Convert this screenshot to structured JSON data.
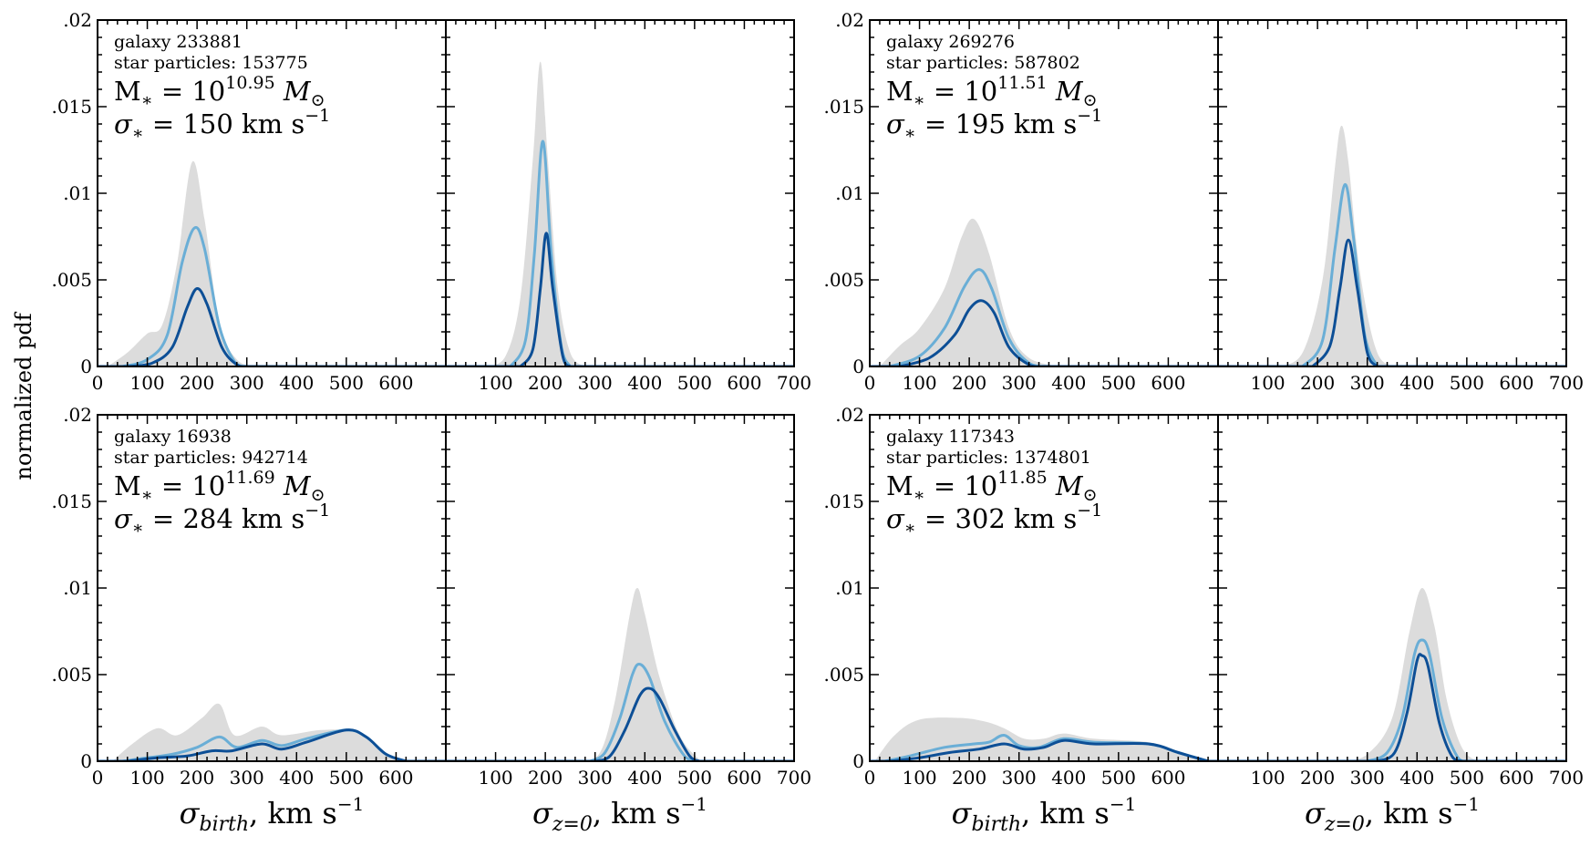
{
  "figure": {
    "ylabel": "normalized pdf",
    "xlabel_birth": {
      "sym": "σ",
      "sub": "birth",
      "unit": ", km s",
      "sup": "−1"
    },
    "xlabel_z0": {
      "sym": "σ",
      "sub": "z=0",
      "unit": ", km s",
      "sup": "−1"
    }
  },
  "colors": {
    "gray_fill": "#dcdcdc",
    "light_line": "#6aaed6",
    "dark_line": "#0d4f96"
  },
  "chart_data": [
    {
      "type": "area",
      "id": "galaxy-233881",
      "annotation": {
        "galaxy": "galaxy 233881",
        "particles": "star particles: 153775",
        "mass_exp": "10.95",
        "sigma": "150"
      },
      "birth": {
        "xlim": [
          0,
          700
        ],
        "ylim": [
          0,
          0.02
        ],
        "x_ticks": [
          "0",
          "100",
          "200",
          "300",
          "400",
          "500",
          "600"
        ],
        "y_ticks": [
          "0",
          ".005",
          ".01",
          ".015",
          ".02"
        ],
        "gray": [
          [
            20,
            0
          ],
          [
            60,
            0.0008
          ],
          [
            100,
            0.0019
          ],
          [
            130,
            0.0024
          ],
          [
            160,
            0.006
          ],
          [
            190,
            0.0118
          ],
          [
            215,
            0.0085
          ],
          [
            245,
            0.0025
          ],
          [
            280,
            0.0004
          ],
          [
            320,
            0
          ]
        ],
        "light": [
          [
            50,
            0
          ],
          [
            100,
            0.0004
          ],
          [
            140,
            0.0018
          ],
          [
            170,
            0.006
          ],
          [
            195,
            0.008
          ],
          [
            215,
            0.0068
          ],
          [
            245,
            0.0023
          ],
          [
            275,
            0.0003
          ],
          [
            300,
            0
          ]
        ],
        "dark": [
          [
            60,
            0
          ],
          [
            110,
            0.0002
          ],
          [
            150,
            0.0011
          ],
          [
            180,
            0.0034
          ],
          [
            200,
            0.0045
          ],
          [
            220,
            0.0036
          ],
          [
            250,
            0.0011
          ],
          [
            280,
            0.0001
          ],
          [
            300,
            0
          ]
        ]
      },
      "z0": {
        "xlim": [
          0,
          700
        ],
        "ylim": [
          0,
          0.02
        ],
        "x_ticks": [
          "100",
          "200",
          "300",
          "400",
          "500",
          "600",
          "700"
        ],
        "gray": [
          [
            80,
            0
          ],
          [
            120,
            0.0006
          ],
          [
            150,
            0.004
          ],
          [
            175,
            0.012
          ],
          [
            190,
            0.0176
          ],
          [
            205,
            0.012
          ],
          [
            225,
            0.0045
          ],
          [
            250,
            0.0008
          ],
          [
            280,
            0
          ]
        ],
        "light": [
          [
            130,
            0
          ],
          [
            160,
            0.0015
          ],
          [
            178,
            0.0065
          ],
          [
            195,
            0.013
          ],
          [
            212,
            0.0065
          ],
          [
            232,
            0.0012
          ],
          [
            250,
            0
          ]
        ],
        "dark": [
          [
            150,
            0
          ],
          [
            175,
            0.001
          ],
          [
            190,
            0.0045
          ],
          [
            202,
            0.0077
          ],
          [
            215,
            0.0045
          ],
          [
            235,
            0.0006
          ],
          [
            250,
            0
          ]
        ]
      }
    },
    {
      "type": "area",
      "id": "galaxy-269276",
      "annotation": {
        "galaxy": "galaxy 269276",
        "particles": "star particles: 587802",
        "mass_exp": "11.51",
        "sigma": "195"
      },
      "birth": {
        "xlim": [
          0,
          700
        ],
        "ylim": [
          0,
          0.02
        ],
        "x_ticks": [
          "0",
          "100",
          "200",
          "300",
          "400",
          "500",
          "600"
        ],
        "y_ticks": [
          "0",
          ".005",
          ".01",
          ".015",
          ".02"
        ],
        "gray": [
          [
            20,
            0
          ],
          [
            60,
            0.0012
          ],
          [
            100,
            0.0022
          ],
          [
            150,
            0.0045
          ],
          [
            185,
            0.0075
          ],
          [
            210,
            0.0085
          ],
          [
            240,
            0.0065
          ],
          [
            280,
            0.0022
          ],
          [
            320,
            0.0005
          ],
          [
            380,
            0
          ]
        ],
        "light": [
          [
            40,
            0
          ],
          [
            100,
            0.0006
          ],
          [
            150,
            0.0022
          ],
          [
            190,
            0.0046
          ],
          [
            220,
            0.0056
          ],
          [
            245,
            0.0045
          ],
          [
            280,
            0.0016
          ],
          [
            320,
            0.0002
          ],
          [
            360,
            0
          ]
        ],
        "dark": [
          [
            60,
            0
          ],
          [
            120,
            0.0005
          ],
          [
            170,
            0.0018
          ],
          [
            200,
            0.0033
          ],
          [
            225,
            0.0038
          ],
          [
            250,
            0.0031
          ],
          [
            280,
            0.0011
          ],
          [
            320,
            0.0001
          ],
          [
            350,
            0
          ]
        ]
      },
      "z0": {
        "xlim": [
          0,
          700
        ],
        "ylim": [
          0,
          0.02
        ],
        "x_ticks": [
          "100",
          "200",
          "300",
          "400",
          "500",
          "600",
          "700"
        ],
        "gray": [
          [
            120,
            0
          ],
          [
            170,
            0.0008
          ],
          [
            210,
            0.005
          ],
          [
            235,
            0.0115
          ],
          [
            248,
            0.0139
          ],
          [
            262,
            0.0118
          ],
          [
            285,
            0.0055
          ],
          [
            320,
            0.0008
          ],
          [
            360,
            0
          ]
        ],
        "light": [
          [
            170,
            0
          ],
          [
            210,
            0.0015
          ],
          [
            235,
            0.0068
          ],
          [
            255,
            0.0105
          ],
          [
            272,
            0.0075
          ],
          [
            295,
            0.0018
          ],
          [
            320,
            0
          ]
        ],
        "dark": [
          [
            190,
            0
          ],
          [
            225,
            0.0012
          ],
          [
            245,
            0.0045
          ],
          [
            262,
            0.0073
          ],
          [
            280,
            0.0045
          ],
          [
            300,
            0.0008
          ],
          [
            320,
            0
          ]
        ]
      }
    },
    {
      "type": "area",
      "id": "galaxy-16938",
      "annotation": {
        "galaxy": "galaxy 16938",
        "particles": "star particles: 942714",
        "mass_exp": "11.69",
        "sigma": "284"
      },
      "birth": {
        "xlim": [
          0,
          700
        ],
        "ylim": [
          0,
          0.02
        ],
        "x_ticks": [
          "0",
          "100",
          "200",
          "300",
          "400",
          "500",
          "600"
        ],
        "y_ticks": [
          "0",
          ".005",
          ".01",
          ".015",
          ".02"
        ],
        "gray": [
          [
            30,
            0
          ],
          [
            70,
            0.001
          ],
          [
            120,
            0.0019
          ],
          [
            160,
            0.0015
          ],
          [
            210,
            0.0025
          ],
          [
            245,
            0.0033
          ],
          [
            275,
            0.0015
          ],
          [
            330,
            0.002
          ],
          [
            370,
            0.0015
          ],
          [
            450,
            0.0018
          ],
          [
            520,
            0.0017
          ],
          [
            560,
            0.0008
          ],
          [
            600,
            0.0001
          ],
          [
            620,
            0
          ]
        ],
        "light": [
          [
            50,
            0
          ],
          [
            100,
            0.0002
          ],
          [
            150,
            0.0004
          ],
          [
            200,
            0.0008
          ],
          [
            245,
            0.0014
          ],
          [
            280,
            0.0008
          ],
          [
            330,
            0.0012
          ],
          [
            370,
            0.0009
          ],
          [
            420,
            0.0013
          ],
          [
            500,
            0.0018
          ],
          [
            540,
            0.0014
          ],
          [
            580,
            0.0004
          ],
          [
            620,
            0
          ]
        ],
        "dark": [
          [
            60,
            0
          ],
          [
            120,
            0.0002
          ],
          [
            180,
            0.0003
          ],
          [
            230,
            0.0006
          ],
          [
            270,
            0.0006
          ],
          [
            330,
            0.001
          ],
          [
            370,
            0.0007
          ],
          [
            420,
            0.0011
          ],
          [
            500,
            0.0018
          ],
          [
            540,
            0.0014
          ],
          [
            580,
            0.0004
          ],
          [
            620,
            0
          ]
        ]
      },
      "z0": {
        "xlim": [
          0,
          700
        ],
        "ylim": [
          0,
          0.02
        ],
        "x_ticks": [
          "100",
          "200",
          "300",
          "400",
          "500",
          "600",
          "700"
        ],
        "gray": [
          [
            270,
            0
          ],
          [
            310,
            0.0005
          ],
          [
            340,
            0.0035
          ],
          [
            370,
            0.0085
          ],
          [
            385,
            0.01
          ],
          [
            400,
            0.0085
          ],
          [
            430,
            0.0048
          ],
          [
            470,
            0.0015
          ],
          [
            510,
            0.0001
          ],
          [
            530,
            0
          ]
        ],
        "light": [
          [
            290,
            0
          ],
          [
            320,
            0.0005
          ],
          [
            350,
            0.0025
          ],
          [
            375,
            0.005
          ],
          [
            390,
            0.0056
          ],
          [
            410,
            0.0048
          ],
          [
            440,
            0.0023
          ],
          [
            480,
            0.0003
          ],
          [
            510,
            0
          ]
        ],
        "dark": [
          [
            300,
            0
          ],
          [
            330,
            0.0003
          ],
          [
            360,
            0.0018
          ],
          [
            390,
            0.0038
          ],
          [
            410,
            0.0042
          ],
          [
            430,
            0.0036
          ],
          [
            460,
            0.0018
          ],
          [
            490,
            0.0003
          ],
          [
            510,
            0
          ]
        ]
      }
    },
    {
      "type": "area",
      "id": "galaxy-117343",
      "annotation": {
        "galaxy": "galaxy 117343",
        "particles": "star particles: 1374801",
        "mass_exp": "11.85",
        "sigma": "302"
      },
      "birth": {
        "xlim": [
          0,
          700
        ],
        "ylim": [
          0,
          0.02
        ],
        "x_ticks": [
          "0",
          "100",
          "200",
          "300",
          "400",
          "500",
          "600"
        ],
        "y_ticks": [
          "0",
          ".005",
          ".01",
          ".015",
          ".02"
        ],
        "gray": [
          [
            10,
            0
          ],
          [
            50,
            0.0015
          ],
          [
            100,
            0.0024
          ],
          [
            180,
            0.0025
          ],
          [
            230,
            0.0023
          ],
          [
            270,
            0.0019
          ],
          [
            310,
            0.0013
          ],
          [
            350,
            0.0013
          ],
          [
            390,
            0.0016
          ],
          [
            450,
            0.0013
          ],
          [
            560,
            0.0011
          ],
          [
            620,
            0.0006
          ],
          [
            670,
            0.0001
          ],
          [
            690,
            0
          ]
        ],
        "light": [
          [
            30,
            0
          ],
          [
            80,
            0.0003
          ],
          [
            150,
            0.0008
          ],
          [
            210,
            0.001
          ],
          [
            240,
            0.0011
          ],
          [
            270,
            0.0015
          ],
          [
            300,
            0.0009
          ],
          [
            340,
            0.0008
          ],
          [
            390,
            0.0013
          ],
          [
            450,
            0.0011
          ],
          [
            560,
            0.001
          ],
          [
            620,
            0.0005
          ],
          [
            680,
            0
          ]
        ],
        "dark": [
          [
            40,
            0
          ],
          [
            100,
            0.0002
          ],
          [
            160,
            0.0005
          ],
          [
            220,
            0.0007
          ],
          [
            270,
            0.001
          ],
          [
            310,
            0.0007
          ],
          [
            350,
            0.0008
          ],
          [
            390,
            0.0012
          ],
          [
            450,
            0.001
          ],
          [
            560,
            0.001
          ],
          [
            620,
            0.0005
          ],
          [
            680,
            0
          ]
        ]
      },
      "z0": {
        "xlim": [
          0,
          700
        ],
        "ylim": [
          0,
          0.02
        ],
        "x_ticks": [
          "100",
          "200",
          "300",
          "400",
          "500",
          "600",
          "700"
        ],
        "gray": [
          [
            250,
            0
          ],
          [
            300,
            0.0004
          ],
          [
            350,
            0.0025
          ],
          [
            385,
            0.0075
          ],
          [
            410,
            0.01
          ],
          [
            435,
            0.0078
          ],
          [
            460,
            0.0035
          ],
          [
            490,
            0.0008
          ],
          [
            520,
            0
          ]
        ],
        "light": [
          [
            300,
            0
          ],
          [
            340,
            0.0005
          ],
          [
            370,
            0.0025
          ],
          [
            395,
            0.0062
          ],
          [
            410,
            0.007
          ],
          [
            425,
            0.0062
          ],
          [
            450,
            0.0025
          ],
          [
            480,
            0.0003
          ],
          [
            500,
            0
          ]
        ],
        "dark": [
          [
            320,
            0
          ],
          [
            355,
            0.0005
          ],
          [
            380,
            0.0028
          ],
          [
            400,
            0.0058
          ],
          [
            410,
            0.0061
          ],
          [
            422,
            0.0055
          ],
          [
            445,
            0.0022
          ],
          [
            470,
            0.0003
          ],
          [
            490,
            0
          ]
        ]
      }
    }
  ]
}
